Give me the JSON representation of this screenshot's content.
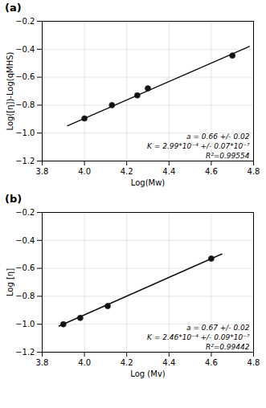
{
  "chart_data": [
    {
      "type": "scatter",
      "title": "(a)",
      "xlabel": "Log(Mw)",
      "ylabel": "Log([η])-Log(qMHS)",
      "series": [
        {
          "type": "scatter",
          "marker": "circle",
          "color": "#111111",
          "x": [
            4.0,
            4.13,
            4.25,
            4.3,
            4.7
          ],
          "values": [
            -0.895,
            -0.8,
            -0.73,
            -0.68,
            -0.445
          ]
        },
        {
          "type": "line",
          "line_style": "solid",
          "color": "#111111",
          "x": [
            3.92,
            4.78
          ],
          "values": [
            -0.9478,
            -0.3802
          ]
        }
      ],
      "xlim": [
        3.8,
        4.8
      ],
      "ylim": [
        -1.2,
        -0.2
      ],
      "xticks": [
        3.8,
        {
          "value": 4.0,
          "label": "4.0"
        },
        4.2,
        4.4,
        4.6,
        4.8
      ],
      "yticks": [
        -1.2,
        {
          "value": -1.0,
          "label": "−1.0"
        },
        -0.8,
        -0.6,
        -0.4,
        -0.2
      ],
      "grid": true,
      "annotations": [
        "a = 0.66 +/- 0.02",
        "K = 2.99*10⁻⁴ +/- 0.07*10⁻⁷",
        "R²=0.99554"
      ]
    },
    {
      "type": "scatter",
      "title": "(b)",
      "xlabel": "Log (Mv)",
      "ylabel": "Log [η]",
      "series": [
        {
          "type": "scatter",
          "marker": "circle",
          "color": "#111111",
          "x": [
            3.9,
            3.98,
            4.11,
            4.6
          ],
          "values": [
            -1.0,
            -0.955,
            -0.87,
            -0.53
          ]
        },
        {
          "type": "line",
          "line_style": "solid",
          "color": "#111111",
          "x": [
            3.88,
            4.65
          ],
          "values": [
            -1.0134,
            -0.4975
          ]
        }
      ],
      "xlim": [
        3.8,
        4.8
      ],
      "ylim": [
        -1.2,
        -0.2
      ],
      "xticks": [
        3.8,
        {
          "value": 4.0,
          "label": "4.0"
        },
        4.2,
        4.4,
        4.6,
        4.8
      ],
      "yticks": [
        -1.2,
        {
          "value": -1.0,
          "label": "−1.0"
        },
        -0.8,
        -0.6,
        -0.4,
        -0.2
      ],
      "grid": true,
      "annotations": [
        "a = 0.67 +/- 0.02",
        "K = 2.46*10⁻⁴ +/- 0.09*10⁻⁷",
        "R²=0.99442"
      ]
    }
  ]
}
